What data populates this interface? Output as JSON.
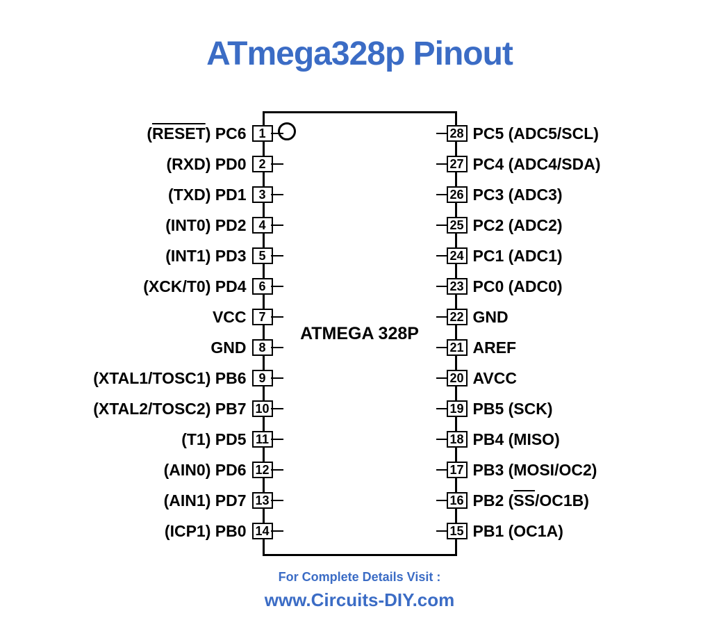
{
  "title": "ATmega328p Pinout",
  "chip_label": "ATMEGA 328P",
  "footer_line1": "For Complete Details Visit :",
  "footer_line2": "www.Circuits-DIY.com",
  "colors": {
    "title": "#3b6cc5",
    "footer": "#3b6cc5",
    "stroke": "#000000",
    "background": "#ffffff"
  },
  "typography": {
    "title_fontsize": 48,
    "pin_label_fontsize": 23,
    "pin_number_fontsize": 18,
    "chip_label_fontsize": 25,
    "footer1_fontsize": 18,
    "footer2_fontsize": 26,
    "font_family": "Arial"
  },
  "chip": {
    "type": "pinout-diagram",
    "package": "DIP-28",
    "body_width": 280,
    "body_height": 640,
    "border_width": 3,
    "notch_diameter": 26,
    "pin_spacing": 44,
    "pin_box": {
      "width": 30,
      "height": 24,
      "border": 2.5
    },
    "lead_length": 18
  },
  "left_pins": [
    {
      "num": "1",
      "label_pre": "(",
      "label_over": "RESET",
      "label_post": ") PC6"
    },
    {
      "num": "2",
      "label": "(RXD) PD0"
    },
    {
      "num": "3",
      "label": "(TXD) PD1"
    },
    {
      "num": "4",
      "label": "(INT0) PD2"
    },
    {
      "num": "5",
      "label": "(INT1) PD3"
    },
    {
      "num": "6",
      "label": "(XCK/T0) PD4"
    },
    {
      "num": "7",
      "label": "VCC"
    },
    {
      "num": "8",
      "label": "GND"
    },
    {
      "num": "9",
      "label": "(XTAL1/TOSC1) PB6"
    },
    {
      "num": "10",
      "label": "(XTAL2/TOSC2) PB7"
    },
    {
      "num": "11",
      "label": "(T1) PD5"
    },
    {
      "num": "12",
      "label": "(AIN0) PD6"
    },
    {
      "num": "13",
      "label": "(AIN1) PD7"
    },
    {
      "num": "14",
      "label": "(ICP1) PB0"
    }
  ],
  "right_pins": [
    {
      "num": "28",
      "label": "PC5 (ADC5/SCL)"
    },
    {
      "num": "27",
      "label": "PC4 (ADC4/SDA)"
    },
    {
      "num": "26",
      "label": "PC3 (ADC3)"
    },
    {
      "num": "25",
      "label": "PC2 (ADC2)"
    },
    {
      "num": "24",
      "label": "PC1 (ADC1)"
    },
    {
      "num": "23",
      "label": "PC0 (ADC0)"
    },
    {
      "num": "22",
      "label": "GND"
    },
    {
      "num": "21",
      "label": "AREF"
    },
    {
      "num": "20",
      "label": "AVCC"
    },
    {
      "num": "19",
      "label": "PB5 (SCK)"
    },
    {
      "num": "18",
      "label": "PB4 (MISO)"
    },
    {
      "num": "17",
      "label": "PB3 (MOSI/OC2)"
    },
    {
      "num": "16",
      "label_pre": "PB2 (",
      "label_over": "SS",
      "label_post": "/OC1B)"
    },
    {
      "num": "15",
      "label": "PB1 (OC1A)"
    }
  ]
}
